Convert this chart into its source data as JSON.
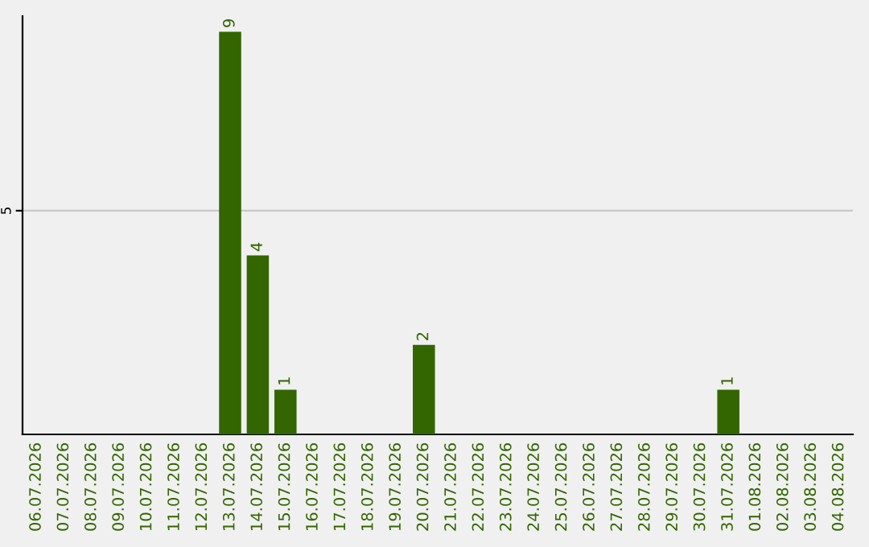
{
  "chart_data": {
    "type": "bar",
    "categories": [
      "06.07.2026",
      "07.07.2026",
      "08.07.2026",
      "09.07.2026",
      "10.07.2026",
      "11.07.2026",
      "12.07.2026",
      "13.07.2026",
      "14.07.2026",
      "15.07.2026",
      "16.07.2026",
      "17.07.2026",
      "18.07.2026",
      "19.07.2026",
      "20.07.2026",
      "21.07.2026",
      "22.07.2026",
      "23.07.2026",
      "24.07.2026",
      "25.07.2026",
      "26.07.2026",
      "27.07.2026",
      "28.07.2026",
      "29.07.2026",
      "30.07.2026",
      "31.07.2026",
      "01.08.2026",
      "02.08.2026",
      "03.08.2026",
      "04.08.2026"
    ],
    "values": [
      0,
      0,
      0,
      0,
      0,
      0,
      0,
      9,
      4,
      1,
      0,
      0,
      0,
      0,
      2,
      0,
      0,
      0,
      0,
      0,
      0,
      0,
      0,
      0,
      0,
      1,
      0,
      0,
      0,
      0
    ],
    "color": "#336600",
    "value_labels": [
      null,
      null,
      null,
      null,
      null,
      null,
      null,
      "9",
      "4",
      "1",
      null,
      null,
      null,
      null,
      "2",
      null,
      null,
      null,
      null,
      null,
      null,
      null,
      null,
      null,
      null,
      "1",
      null,
      null,
      null,
      null
    ],
    "ylim": [
      0,
      9.35
    ],
    "yticks": [
      5
    ],
    "grid": "y"
  }
}
